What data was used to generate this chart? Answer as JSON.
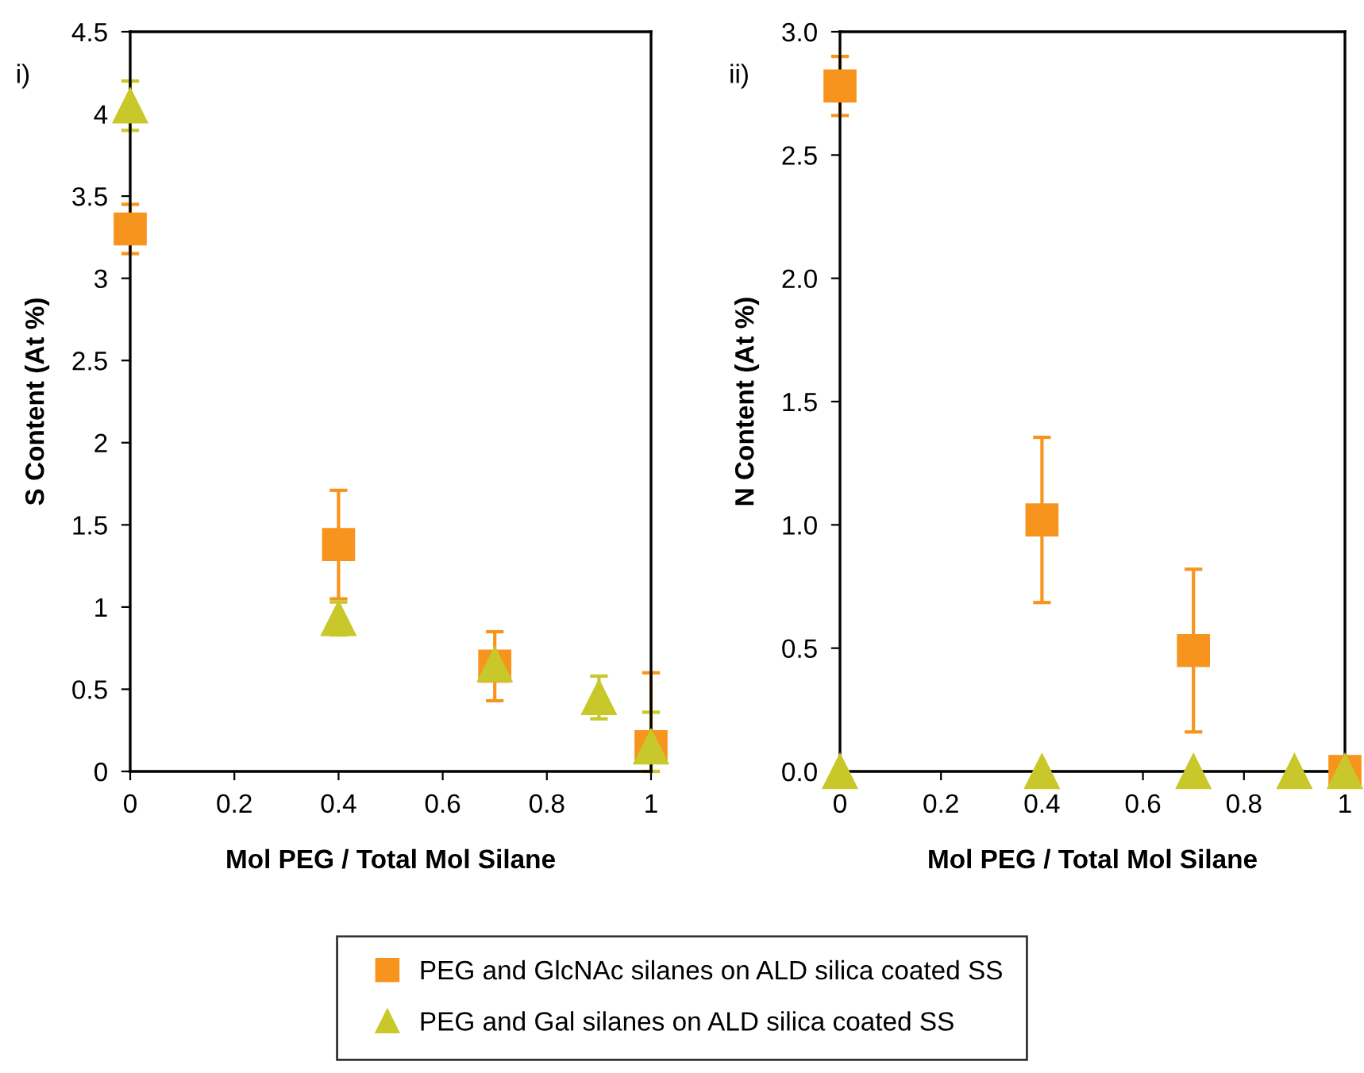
{
  "chart_data": [
    {
      "type": "scatter",
      "annotations": [
        "i)"
      ],
      "xlabel": "Mol PEG / Total Mol Silane",
      "ylabel": "S Content (At %)",
      "xlim": [
        0,
        1
      ],
      "xticks": [
        0,
        0.2,
        0.4,
        0.6,
        0.8,
        1
      ],
      "ylim": [
        0,
        4.5
      ],
      "yticks": [
        0,
        0.5,
        1,
        1.5,
        2,
        2.5,
        3,
        3.5,
        4,
        4.5
      ],
      "grid": false,
      "legend": "bottom",
      "series": [
        {
          "name": "PEG and GlcNAc silanes on ALD silica coated SS",
          "color": "#f7941d",
          "marker": "square",
          "x": [
            0,
            0.4,
            0.7,
            1
          ],
          "values": [
            3.3,
            1.38,
            0.64,
            0.15
          ],
          "errors": [
            0.15,
            0.33,
            0.21,
            [
              0,
              0.6
            ]
          ]
        },
        {
          "name": "PEG and Gal silanes on ALD silica coated SS",
          "color": "#c8c82a",
          "marker": "triangle",
          "x": [
            0,
            0.4,
            0.7,
            0.9,
            1
          ],
          "values": [
            4.05,
            0.93,
            0.65,
            0.45,
            0.15
          ],
          "errors": [
            0.15,
            0.1,
            null,
            0.13,
            [
              0,
              0.36
            ]
          ]
        }
      ]
    },
    {
      "type": "scatter",
      "annotations": [
        "ii)"
      ],
      "xlabel": "Mol PEG / Total Mol Silane",
      "ylabel": "N Content (At %)",
      "xlim": [
        0,
        1
      ],
      "xticks": [
        0,
        0.2,
        0.4,
        0.6,
        0.8,
        1
      ],
      "ylim": [
        0,
        3.0
      ],
      "yticks": [
        {
          "value": 0,
          "label": "0.0"
        },
        0.5,
        {
          "value": 1,
          "label": "1.0"
        },
        1.5,
        {
          "value": 2,
          "label": "2.0"
        },
        2.5,
        {
          "value": 3,
          "label": "3.0"
        }
      ],
      "grid": false,
      "series": [
        {
          "color": "#f7941d",
          "marker": "square",
          "x": [
            0,
            0.4,
            0.7,
            1
          ],
          "values": [
            2.78,
            1.02,
            0.49,
            0
          ],
          "errors": [
            0.12,
            0.335,
            0.33,
            null
          ]
        },
        {
          "color": "#c8c82a",
          "marker": "triangle",
          "x": [
            0,
            0.4,
            0.7,
            0.9,
            1
          ],
          "values": [
            0,
            0,
            0,
            0,
            0
          ],
          "errors": [
            null,
            null,
            null,
            null,
            null
          ]
        }
      ]
    }
  ]
}
